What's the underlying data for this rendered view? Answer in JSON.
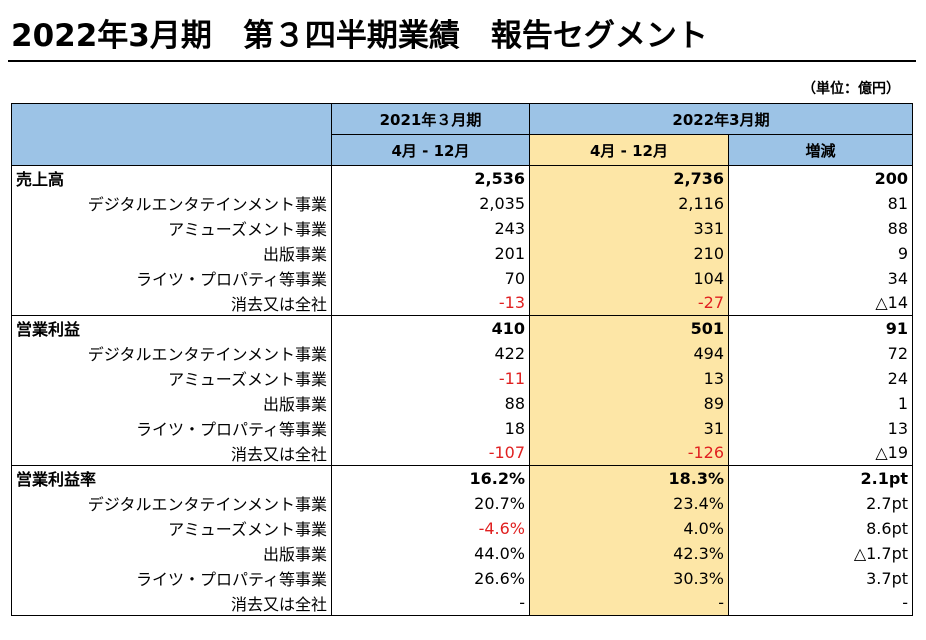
{
  "title": "2022年3月期　第３四半期業績　報告セグメント",
  "unit": "（単位：億円）",
  "header": {
    "col1_top": "2021年３月期",
    "col2_top": "2022年3月期",
    "col1_sub": "4月 - 12月",
    "col2_sub": "4月 - 12月",
    "col3_sub": "増減"
  },
  "sections": [
    {
      "title": "売上高",
      "total": [
        "2,536",
        "2,736",
        "200"
      ],
      "rows": [
        {
          "label": "デジタルエンタテインメント事業",
          "v": [
            "2,035",
            "2,116",
            "81"
          ]
        },
        {
          "label": "アミューズメント事業",
          "v": [
            "243",
            "331",
            "88"
          ]
        },
        {
          "label": "出版事業",
          "v": [
            "201",
            "210",
            "9"
          ]
        },
        {
          "label": "ライツ・プロパティ等事業",
          "v": [
            "70",
            "104",
            "34"
          ]
        },
        {
          "label": "消去又は全社",
          "v": [
            "-13",
            "-27",
            "△14"
          ]
        }
      ]
    },
    {
      "title": "営業利益",
      "total": [
        "410",
        "501",
        "91"
      ],
      "rows": [
        {
          "label": "デジタルエンタテインメント事業",
          "v": [
            "422",
            "494",
            "72"
          ]
        },
        {
          "label": "アミューズメント事業",
          "v": [
            "-11",
            "13",
            "24"
          ]
        },
        {
          "label": "出版事業",
          "v": [
            "88",
            "89",
            "1"
          ]
        },
        {
          "label": "ライツ・プロパティ等事業",
          "v": [
            "18",
            "31",
            "13"
          ]
        },
        {
          "label": "消去又は全社",
          "v": [
            "-107",
            "-126",
            "△19"
          ]
        }
      ]
    },
    {
      "title": "営業利益率",
      "total": [
        "16.2%",
        "18.3%",
        "2.1pt"
      ],
      "rows": [
        {
          "label": "デジタルエンタテインメント事業",
          "v": [
            "20.7%",
            "23.4%",
            "2.7pt"
          ]
        },
        {
          "label": "アミューズメント事業",
          "v": [
            "-4.6%",
            "4.0%",
            "8.6pt"
          ]
        },
        {
          "label": "出版事業",
          "v": [
            "44.0%",
            "42.3%",
            "△1.7pt"
          ]
        },
        {
          "label": "ライツ・プロパティ等事業",
          "v": [
            "26.6%",
            "30.3%",
            "3.7pt"
          ]
        },
        {
          "label": "消去又は全社",
          "v": [
            "-",
            "-",
            "-"
          ]
        }
      ]
    }
  ],
  "colors": {
    "header_blue": "#9cc3e6",
    "highlight": "#fde6a6",
    "negative": "#e02020"
  }
}
